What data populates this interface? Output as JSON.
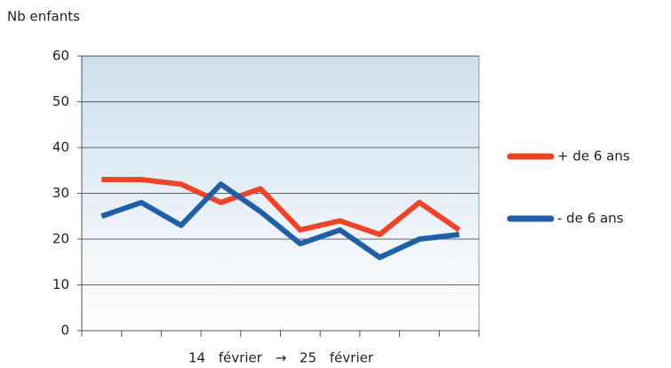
{
  "chart_data": {
    "type": "line",
    "ylabel": "Nb enfants",
    "xlabel": "14 février → 25 février",
    "categories": [
      null,
      null,
      null,
      null,
      null,
      null,
      null,
      null,
      null,
      null
    ],
    "series": [
      {
        "name": "+ de 6 ans",
        "color": "#ee4427",
        "values": [
          33,
          33,
          32,
          28,
          31,
          22,
          24,
          21,
          28,
          22
        ]
      },
      {
        "name": "- de 6 ans",
        "color": "#1f5fa8",
        "values": [
          25,
          28,
          23,
          32,
          26,
          19,
          22,
          16,
          20,
          21
        ]
      }
    ],
    "ylim": [
      0,
      60
    ],
    "yticks": [
      0,
      10,
      20,
      30,
      40,
      50,
      60
    ],
    "grid": true,
    "legend": "right"
  }
}
